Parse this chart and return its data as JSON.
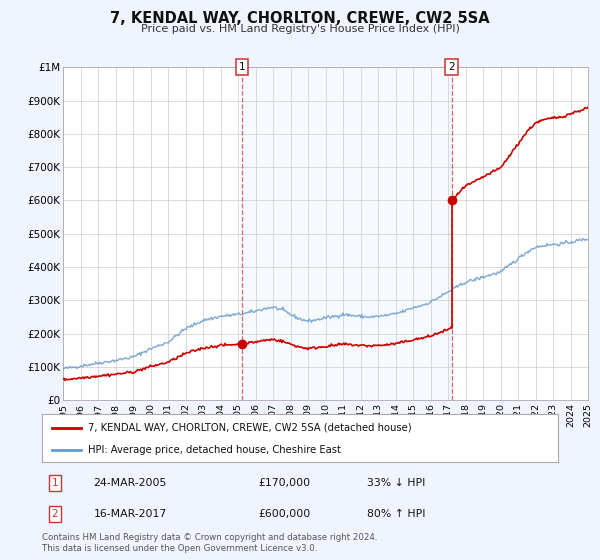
{
  "title": "7, KENDAL WAY, CHORLTON, CREWE, CW2 5SA",
  "subtitle": "Price paid vs. HM Land Registry's House Price Index (HPI)",
  "xlim": [
    1995,
    2025
  ],
  "ylim": [
    0,
    1000000
  ],
  "yticks": [
    0,
    100000,
    200000,
    300000,
    400000,
    500000,
    600000,
    700000,
    800000,
    900000,
    1000000
  ],
  "ytick_labels": [
    "£0",
    "£100K",
    "£200K",
    "£300K",
    "£400K",
    "£500K",
    "£600K",
    "£700K",
    "£800K",
    "£900K",
    "£1M"
  ],
  "xticks": [
    1995,
    1996,
    1997,
    1998,
    1999,
    2000,
    2001,
    2002,
    2003,
    2004,
    2005,
    2006,
    2007,
    2008,
    2009,
    2010,
    2011,
    2012,
    2013,
    2014,
    2015,
    2016,
    2017,
    2018,
    2019,
    2020,
    2021,
    2022,
    2023,
    2024,
    2025
  ],
  "sale1_x": 2005.22,
  "sale1_y": 170000,
  "sale2_x": 2017.21,
  "sale2_y": 600000,
  "property_color": "#cc0000",
  "hpi_color": "#6699cc",
  "span_color": "#ddeeff",
  "legend_property": "7, KENDAL WAY, CHORLTON, CREWE, CW2 5SA (detached house)",
  "legend_hpi": "HPI: Average price, detached house, Cheshire East",
  "annotation1_date": "24-MAR-2005",
  "annotation1_price": "£170,000",
  "annotation1_hpi": "33% ↓ HPI",
  "annotation2_date": "16-MAR-2017",
  "annotation2_price": "£600,000",
  "annotation2_hpi": "80% ↑ HPI",
  "footnote": "Contains HM Land Registry data © Crown copyright and database right 2024.\nThis data is licensed under the Open Government Licence v3.0.",
  "background_color": "#f0f4ff",
  "plot_bg_color": "#ffffff",
  "grid_color": "#cccccc",
  "vline_color": "#cc4444",
  "box_edge_color": "#cc3333"
}
